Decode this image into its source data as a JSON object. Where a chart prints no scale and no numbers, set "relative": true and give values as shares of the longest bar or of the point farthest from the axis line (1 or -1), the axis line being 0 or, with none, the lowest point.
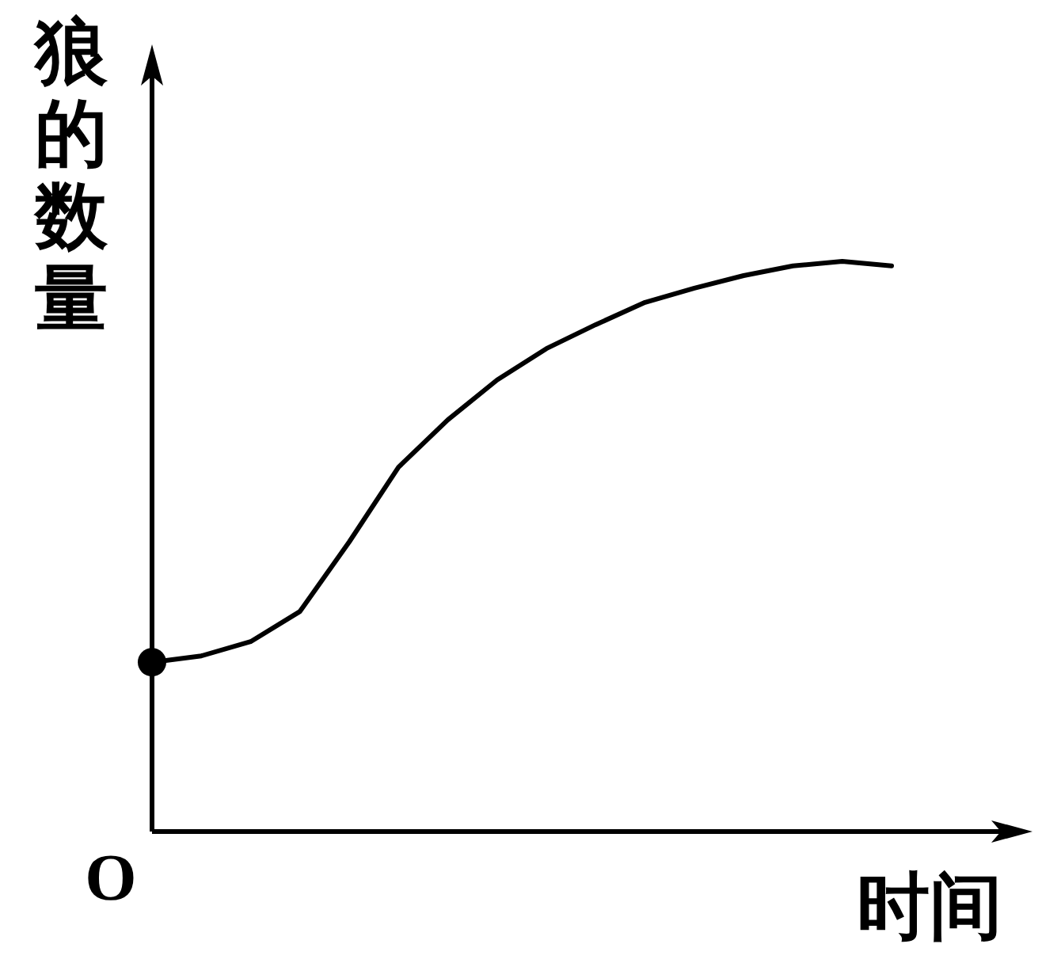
{
  "chart_data": {
    "type": "line",
    "relative": true,
    "xlabel": "时间",
    "ylabel": "狼的数量",
    "annotations": [
      "O"
    ],
    "categories": [
      null,
      null,
      null,
      null,
      null,
      null,
      null,
      null,
      null,
      null,
      null,
      null,
      null,
      null,
      null,
      null
    ],
    "series": [
      {
        "color": "#000000",
        "values": [
          0.297,
          0.308,
          0.333,
          0.386,
          0.508,
          0.639,
          0.722,
          0.792,
          0.847,
          0.889,
          0.928,
          0.953,
          0.975,
          0.992,
          1,
          0.992
        ]
      }
    ]
  }
}
